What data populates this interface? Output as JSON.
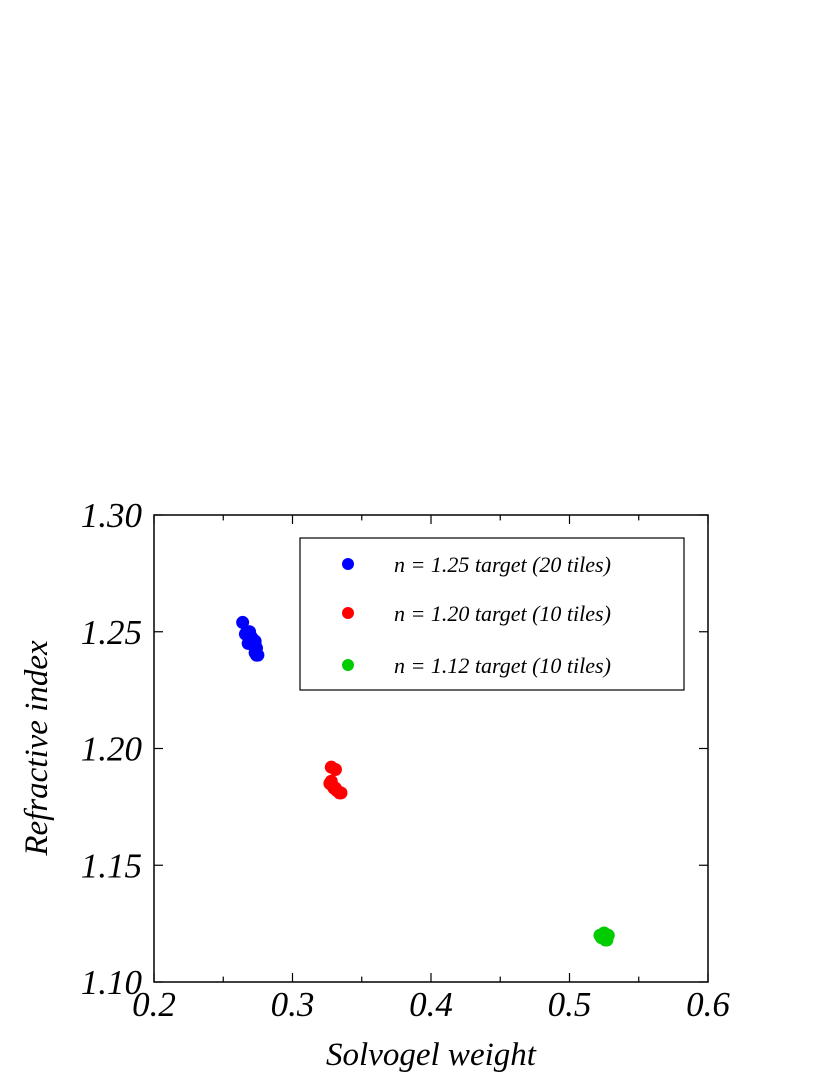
{
  "chart_data": {
    "type": "scatter",
    "xlabel": "Solvogel weight",
    "ylabel": "Refractive index",
    "xlim": [
      0.2,
      0.6
    ],
    "ylim": [
      1.1,
      1.3
    ],
    "x_ticks": [
      "0.2",
      "0.3",
      "0.4",
      "0.5",
      "0.6"
    ],
    "y_ticks": [
      "1.10",
      "1.15",
      "1.20",
      "1.25",
      "1.30"
    ],
    "x_tick_values": [
      0.2,
      0.3,
      0.4,
      0.5,
      0.6
    ],
    "y_tick_values": [
      1.1,
      1.15,
      1.2,
      1.25,
      1.3
    ],
    "grid": false,
    "legend_position": "top-right",
    "series": [
      {
        "name": "n = 1.25 target (20 tiles)",
        "color": "#0000ff",
        "points": [
          [
            0.264,
            1.254
          ],
          [
            0.266,
            1.249
          ],
          [
            0.268,
            1.249
          ],
          [
            0.269,
            1.25
          ],
          [
            0.27,
            1.248
          ],
          [
            0.271,
            1.247
          ],
          [
            0.272,
            1.246
          ],
          [
            0.273,
            1.246
          ],
          [
            0.268,
            1.245
          ],
          [
            0.27,
            1.246
          ],
          [
            0.272,
            1.244
          ],
          [
            0.274,
            1.243
          ],
          [
            0.273,
            1.241
          ],
          [
            0.274,
            1.24
          ],
          [
            0.275,
            1.24
          ],
          [
            0.271,
            1.247
          ],
          [
            0.269,
            1.248
          ],
          [
            0.267,
            1.25
          ],
          [
            0.273,
            1.245
          ],
          [
            0.27,
            1.245
          ]
        ]
      },
      {
        "name": "n = 1.20 target (10 tiles)",
        "color": "#ff0000",
        "points": [
          [
            0.328,
            1.192
          ],
          [
            0.331,
            1.191
          ],
          [
            0.327,
            1.185
          ],
          [
            0.328,
            1.186
          ],
          [
            0.329,
            1.184
          ],
          [
            0.33,
            1.183
          ],
          [
            0.331,
            1.183
          ],
          [
            0.332,
            1.182
          ],
          [
            0.334,
            1.181
          ],
          [
            0.335,
            1.181
          ]
        ]
      },
      {
        "name": "n = 1.12 target (10 tiles)",
        "color": "#00cc00",
        "points": [
          [
            0.522,
            1.12
          ],
          [
            0.523,
            1.119
          ],
          [
            0.524,
            1.12
          ],
          [
            0.525,
            1.121
          ],
          [
            0.525,
            1.119
          ],
          [
            0.526,
            1.118
          ],
          [
            0.527,
            1.119
          ],
          [
            0.527,
            1.118
          ],
          [
            0.528,
            1.12
          ],
          [
            0.524,
            1.119
          ]
        ]
      }
    ]
  }
}
